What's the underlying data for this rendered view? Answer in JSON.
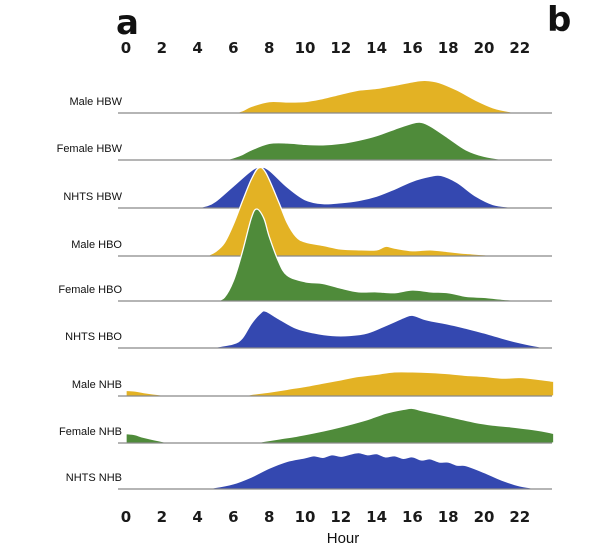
{
  "panel_labels": {
    "left": "a",
    "right": "b"
  },
  "chart_data": {
    "type": "area",
    "subtype": "ridgeline",
    "title": "",
    "xlabel": "Hour",
    "ylabel": "",
    "xlim": [
      0,
      24
    ],
    "x_ticks": [
      "0",
      "2",
      "4",
      "6",
      "8",
      "10",
      "12",
      "14",
      "16",
      "18",
      "20",
      "22"
    ],
    "x_tick_values": [
      0,
      2,
      4,
      6,
      8,
      10,
      12,
      14,
      16,
      18,
      20,
      22
    ],
    "tick_axes": "top and bottom",
    "grid": false,
    "legend": "none",
    "colors": {
      "male": "#e3b224",
      "female": "#4f8b3a",
      "nhts": "#3448b0"
    },
    "series": [
      {
        "name": "Male HBW",
        "color": "#e3b224",
        "points": [
          [
            6.0,
            0
          ],
          [
            6.5,
            0.05
          ],
          [
            7.0,
            0.15
          ],
          [
            8.0,
            0.26
          ],
          [
            9.0,
            0.25
          ],
          [
            10.0,
            0.26
          ],
          [
            11.0,
            0.33
          ],
          [
            12.0,
            0.43
          ],
          [
            13.0,
            0.52
          ],
          [
            14.0,
            0.56
          ],
          [
            15.0,
            0.63
          ],
          [
            16.0,
            0.71
          ],
          [
            16.7,
            0.74
          ],
          [
            17.5,
            0.69
          ],
          [
            18.5,
            0.52
          ],
          [
            19.5,
            0.3
          ],
          [
            20.5,
            0.12
          ],
          [
            21.5,
            0.03
          ],
          [
            22.5,
            0
          ]
        ]
      },
      {
        "name": "Female HBW",
        "color": "#4f8b3a",
        "points": [
          [
            5.5,
            0
          ],
          [
            6.0,
            0.05
          ],
          [
            6.5,
            0.12
          ],
          [
            7.0,
            0.22
          ],
          [
            8.0,
            0.36
          ],
          [
            9.0,
            0.37
          ],
          [
            10.0,
            0.34
          ],
          [
            11.0,
            0.33
          ],
          [
            12.0,
            0.36
          ],
          [
            13.0,
            0.43
          ],
          [
            14.0,
            0.53
          ],
          [
            15.0,
            0.67
          ],
          [
            16.0,
            0.8
          ],
          [
            16.5,
            0.82
          ],
          [
            17.0,
            0.74
          ],
          [
            18.0,
            0.48
          ],
          [
            19.0,
            0.22
          ],
          [
            20.0,
            0.08
          ],
          [
            21.0,
            0.02
          ],
          [
            22.0,
            0
          ]
        ]
      },
      {
        "name": "NHTS HBW",
        "color": "#3448b0",
        "points": [
          [
            3.8,
            0
          ],
          [
            4.5,
            0.05
          ],
          [
            5.0,
            0.15
          ],
          [
            6.0,
            0.5
          ],
          [
            7.0,
            0.85
          ],
          [
            7.5,
            0.93
          ],
          [
            8.0,
            0.86
          ],
          [
            9.0,
            0.48
          ],
          [
            10.0,
            0.19
          ],
          [
            11.0,
            0.1
          ],
          [
            12.0,
            0.12
          ],
          [
            13.0,
            0.17
          ],
          [
            14.0,
            0.27
          ],
          [
            15.0,
            0.43
          ],
          [
            16.0,
            0.61
          ],
          [
            17.0,
            0.72
          ],
          [
            17.6,
            0.74
          ],
          [
            18.5,
            0.58
          ],
          [
            19.5,
            0.28
          ],
          [
            20.5,
            0.08
          ],
          [
            21.5,
            0.02
          ],
          [
            22.0,
            0
          ]
        ]
      },
      {
        "name": "Male HBO",
        "color": "#e3b224",
        "points": [
          [
            4.5,
            0
          ],
          [
            5.0,
            0.05
          ],
          [
            5.5,
            0.15
          ],
          [
            6.0,
            0.36
          ],
          [
            6.5,
            0.62
          ],
          [
            7.0,
            0.87
          ],
          [
            7.4,
            1.0
          ],
          [
            7.8,
            0.95
          ],
          [
            8.5,
            0.63
          ],
          [
            9.0,
            0.38
          ],
          [
            9.5,
            0.22
          ],
          [
            10.0,
            0.16
          ],
          [
            11.0,
            0.12
          ],
          [
            12.0,
            0.08
          ],
          [
            13.0,
            0.07
          ],
          [
            14.0,
            0.07
          ],
          [
            14.5,
            0.11
          ],
          [
            15.0,
            0.09
          ],
          [
            16.0,
            0.06
          ],
          [
            17.0,
            0.07
          ],
          [
            18.0,
            0.05
          ],
          [
            19.0,
            0.03
          ],
          [
            20.5,
            0.01
          ],
          [
            22.0,
            0
          ]
        ]
      },
      {
        "name": "Female HBO",
        "color": "#4f8b3a",
        "points": [
          [
            5.0,
            0
          ],
          [
            5.5,
            0.04
          ],
          [
            6.0,
            0.22
          ],
          [
            6.5,
            0.53
          ],
          [
            7.0,
            0.9
          ],
          [
            7.3,
            1.0
          ],
          [
            7.7,
            0.9
          ],
          [
            8.0,
            0.7
          ],
          [
            8.5,
            0.44
          ],
          [
            9.0,
            0.28
          ],
          [
            10.0,
            0.21
          ],
          [
            11.0,
            0.19
          ],
          [
            12.0,
            0.14
          ],
          [
            13.0,
            0.1
          ],
          [
            14.0,
            0.1
          ],
          [
            15.0,
            0.09
          ],
          [
            16.0,
            0.12
          ],
          [
            17.0,
            0.1
          ],
          [
            18.0,
            0.09
          ],
          [
            19.0,
            0.05
          ],
          [
            20.0,
            0.04
          ],
          [
            21.0,
            0.02
          ],
          [
            22.0,
            0.01
          ],
          [
            23.5,
            0
          ]
        ]
      },
      {
        "name": "NHTS HBO",
        "color": "#3448b0",
        "points": [
          [
            4.3,
            0
          ],
          [
            5.0,
            0.02
          ],
          [
            6.0,
            0.08
          ],
          [
            6.5,
            0.19
          ],
          [
            7.0,
            0.47
          ],
          [
            7.5,
            0.67
          ],
          [
            7.8,
            0.71
          ],
          [
            8.5,
            0.57
          ],
          [
            9.5,
            0.38
          ],
          [
            10.5,
            0.29
          ],
          [
            11.5,
            0.24
          ],
          [
            12.5,
            0.24
          ],
          [
            13.5,
            0.29
          ],
          [
            14.5,
            0.43
          ],
          [
            15.5,
            0.58
          ],
          [
            16.0,
            0.63
          ],
          [
            16.8,
            0.54
          ],
          [
            18.0,
            0.46
          ],
          [
            19.0,
            0.38
          ],
          [
            20.0,
            0.29
          ],
          [
            21.0,
            0.19
          ],
          [
            22.0,
            0.1
          ],
          [
            23.0,
            0.03
          ],
          [
            23.8,
            0
          ]
        ]
      },
      {
        "name": "Male NHB",
        "color": "#e3b224",
        "points": [
          [
            0.0,
            0.1
          ],
          [
            0.5,
            0.09
          ],
          [
            1.0,
            0.06
          ],
          [
            2.0,
            0.02
          ],
          [
            3.0,
            0
          ],
          [
            6.5,
            0
          ],
          [
            7.0,
            0.03
          ],
          [
            8.0,
            0.07
          ],
          [
            9.0,
            0.12
          ],
          [
            10.0,
            0.17
          ],
          [
            11.0,
            0.23
          ],
          [
            12.0,
            0.29
          ],
          [
            13.0,
            0.35
          ],
          [
            14.0,
            0.39
          ],
          [
            15.0,
            0.43
          ],
          [
            16.0,
            0.43
          ],
          [
            17.0,
            0.42
          ],
          [
            18.0,
            0.4
          ],
          [
            19.0,
            0.37
          ],
          [
            20.0,
            0.35
          ],
          [
            21.0,
            0.32
          ],
          [
            22.0,
            0.33
          ],
          [
            23.0,
            0.3
          ],
          [
            23.9,
            0.26
          ]
        ]
      },
      {
        "name": "Female NHB",
        "color": "#4f8b3a",
        "points": [
          [
            0.0,
            0.17
          ],
          [
            0.5,
            0.15
          ],
          [
            1.0,
            0.1
          ],
          [
            2.0,
            0.03
          ],
          [
            2.8,
            0
          ],
          [
            7.0,
            0
          ],
          [
            7.5,
            0.02
          ],
          [
            8.5,
            0.07
          ],
          [
            9.5,
            0.12
          ],
          [
            10.5,
            0.18
          ],
          [
            11.5,
            0.25
          ],
          [
            12.5,
            0.33
          ],
          [
            13.5,
            0.42
          ],
          [
            14.5,
            0.53
          ],
          [
            15.5,
            0.6
          ],
          [
            16.0,
            0.62
          ],
          [
            16.5,
            0.58
          ],
          [
            17.5,
            0.51
          ],
          [
            18.5,
            0.44
          ],
          [
            19.5,
            0.37
          ],
          [
            20.5,
            0.32
          ],
          [
            21.5,
            0.29
          ],
          [
            22.5,
            0.25
          ],
          [
            23.5,
            0.2
          ],
          [
            23.9,
            0.17
          ]
        ]
      },
      {
        "name": "NHTS NHB",
        "color": "#3448b0",
        "points": [
          [
            4.0,
            0
          ],
          [
            5.0,
            0.03
          ],
          [
            6.0,
            0.1
          ],
          [
            7.0,
            0.23
          ],
          [
            8.0,
            0.4
          ],
          [
            9.0,
            0.53
          ],
          [
            10.0,
            0.6
          ],
          [
            10.5,
            0.64
          ],
          [
            11.0,
            0.61
          ],
          [
            11.5,
            0.66
          ],
          [
            12.0,
            0.63
          ],
          [
            12.5,
            0.67
          ],
          [
            13.0,
            0.7
          ],
          [
            13.5,
            0.66
          ],
          [
            14.0,
            0.68
          ],
          [
            14.5,
            0.62
          ],
          [
            15.0,
            0.64
          ],
          [
            15.5,
            0.59
          ],
          [
            16.0,
            0.62
          ],
          [
            16.5,
            0.56
          ],
          [
            17.0,
            0.58
          ],
          [
            17.5,
            0.52
          ],
          [
            18.0,
            0.52
          ],
          [
            18.5,
            0.46
          ],
          [
            19.0,
            0.45
          ],
          [
            20.0,
            0.32
          ],
          [
            21.0,
            0.17
          ],
          [
            22.0,
            0.06
          ],
          [
            23.0,
            0.01
          ],
          [
            23.5,
            0
          ]
        ]
      }
    ]
  }
}
